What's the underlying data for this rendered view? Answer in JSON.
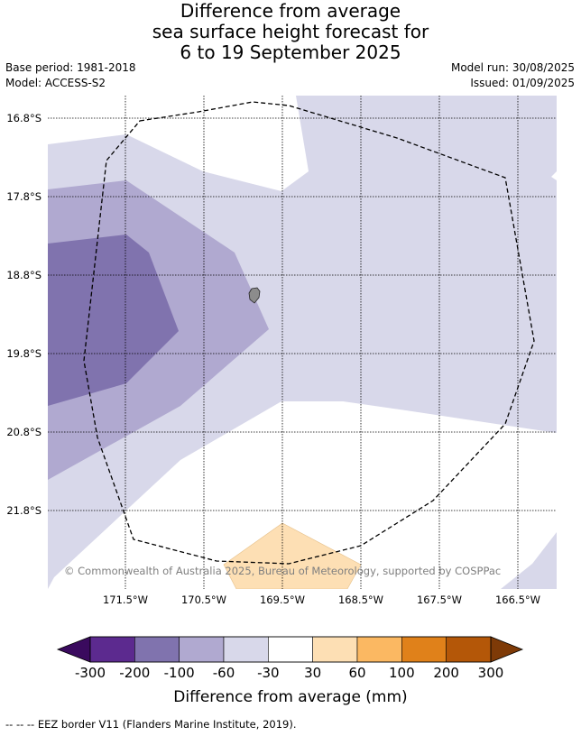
{
  "title_lines": [
    "Difference from average",
    "sea surface height forecast for",
    "6 to 19 September 2025"
  ],
  "base_period": "Base period: 1981-2018",
  "model": "Model: ACCESS-S2",
  "model_run": "Model run: 30/08/2025",
  "issued": "Issued: 01/09/2025",
  "lat_labels": [
    "16.8°S",
    "17.8°S",
    "18.8°S",
    "19.8°S",
    "20.8°S",
    "21.8°S"
  ],
  "lon_labels": [
    "171.5°W",
    "170.5°W",
    "169.5°W",
    "168.5°W",
    "167.5°W",
    "166.5°W"
  ],
  "copyright": "© Commonwealth of Australia 2025, Bureau of Meteorology, supported by COSPPac",
  "colorbar": {
    "ticks": [
      "-300",
      "-200",
      "-100",
      "-60",
      "-30",
      "30",
      "60",
      "100",
      "200",
      "300"
    ],
    "colors": [
      "#5c2a8f",
      "#8073ae",
      "#b0a9d0",
      "#d8d8ea",
      "#ffffff",
      "#fddfb4",
      "#fbb862",
      "#e0811a",
      "#b45708"
    ],
    "under_color": "#3a0a5e",
    "over_color": "#7e3a07",
    "label": "Difference from average (mm)"
  },
  "legend_note": "--  --  -- EEZ border V11 (Flanders Marine Institute, 2019)."
}
